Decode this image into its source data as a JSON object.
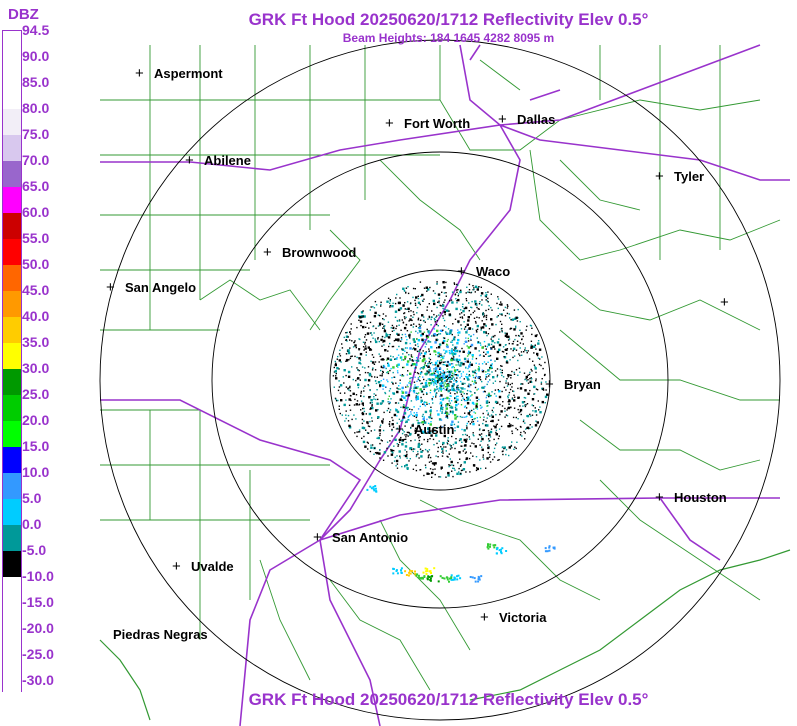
{
  "header": {
    "title_top": "GRK Ft Hood 20250620/1712 Reflectivity Elev 0.5°",
    "subtitle": "Beam Heights: 184 1645 4282 8095 m",
    "title_bottom": "GRK Ft Hood 20250620/1712 Reflectivity Elev 0.5°"
  },
  "legend": {
    "units": "DBZ",
    "levels": [
      {
        "label": "94.5",
        "color": "#ffffff"
      },
      {
        "label": "90.0",
        "color": "#ffffff"
      },
      {
        "label": "85.0",
        "color": "#ffffff"
      },
      {
        "label": "80.0",
        "color": "#f2eef7"
      },
      {
        "label": "75.0",
        "color": "#d8c8ee"
      },
      {
        "label": "70.0",
        "color": "#9966cc"
      },
      {
        "label": "65.0",
        "color": "#ff00ff"
      },
      {
        "label": "60.0",
        "color": "#cc0000"
      },
      {
        "label": "55.0",
        "color": "#ff0000"
      },
      {
        "label": "50.0",
        "color": "#ff6600"
      },
      {
        "label": "45.0",
        "color": "#ff9900"
      },
      {
        "label": "40.0",
        "color": "#ffcc00"
      },
      {
        "label": "35.0",
        "color": "#ffff00"
      },
      {
        "label": "30.0",
        "color": "#009900"
      },
      {
        "label": "25.0",
        "color": "#00cc00"
      },
      {
        "label": "20.0",
        "color": "#00ff00"
      },
      {
        "label": "15.0",
        "color": "#0000ff"
      },
      {
        "label": "10.0",
        "color": "#3399ff"
      },
      {
        "label": "5.0",
        "color": "#00ccff"
      },
      {
        "label": "0.0",
        "color": "#009999"
      },
      {
        "label": "-5.0",
        "color": "#000000"
      },
      {
        "label": "-10.0",
        "color": "#ffffff"
      },
      {
        "label": "-15.0",
        "color": "#ffffff"
      },
      {
        "label": "-20.0",
        "color": "#ffffff"
      },
      {
        "label": "-25.0",
        "color": "#ffffff"
      },
      {
        "label": "-30.0",
        "color": "#ffffff"
      }
    ]
  },
  "cities": [
    {
      "id": "aspermont",
      "name": "Aspermont"
    },
    {
      "id": "abilene",
      "name": "Abilene"
    },
    {
      "id": "fort-worth",
      "name": "Fort Worth"
    },
    {
      "id": "dallas",
      "name": "Dallas"
    },
    {
      "id": "tyler",
      "name": "Tyler"
    },
    {
      "id": "brownwood",
      "name": "Brownwood"
    },
    {
      "id": "san-angelo",
      "name": "San Angelo"
    },
    {
      "id": "waco",
      "name": "Waco"
    },
    {
      "id": "bryan",
      "name": "Bryan"
    },
    {
      "id": "austin",
      "name": "Austin"
    },
    {
      "id": "houston",
      "name": "Houston"
    },
    {
      "id": "san-antonio",
      "name": "San Antonio"
    },
    {
      "id": "uvalde",
      "name": "Uvalde"
    },
    {
      "id": "victoria",
      "name": "Victoria"
    },
    {
      "id": "piedras-negras",
      "name": "Piedras Negras"
    }
  ],
  "colors": {
    "title": "#9933cc",
    "county_lines": "#339933",
    "highways": "#9933cc",
    "range_rings": "#000000"
  }
}
